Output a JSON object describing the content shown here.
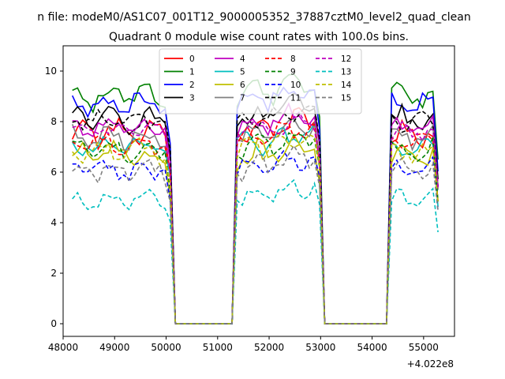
{
  "chart_data": {
    "type": "line",
    "suptitle": "n file: modeM0/AS1C07_001T12_9000005352_37887cztM0_level2_quad_clean",
    "title": "Quadrant 0 module wise count rates with 100.0s bins.",
    "xlabel": "",
    "ylabel": "",
    "x_offset_label": "+4.022e8",
    "xlim": [
      48000,
      55600
    ],
    "ylim": [
      -0.5,
      11
    ],
    "x_ticks": [
      48000,
      49000,
      50000,
      51000,
      52000,
      53000,
      54000,
      55000
    ],
    "x_tick_labels": [
      "48000",
      "49000",
      "50000",
      "51000",
      "52000",
      "53000",
      "54000",
      "55000"
    ],
    "y_ticks": [
      0,
      2,
      4,
      6,
      8,
      10
    ],
    "y_tick_labels": [
      "0",
      "2",
      "4",
      "6",
      "8",
      "10"
    ],
    "legend_location": "upper center",
    "legend_columns": 4,
    "x_start": 48180,
    "bin_width": 100,
    "gap1": {
      "first_zero": 50180,
      "last_zero": 51280
    },
    "gap2": {
      "first_zero": 53080,
      "last_zero": 54280
    },
    "series": [
      {
        "name": "0",
        "color": "#ff0000",
        "dash": "solid",
        "base": 7.5,
        "amp": 0.35,
        "phase": 0.0
      },
      {
        "name": "1",
        "color": "#008000",
        "dash": "solid",
        "base": 9.0,
        "amp": 0.35,
        "phase": 1.1
      },
      {
        "name": "2",
        "color": "#0000ff",
        "dash": "solid",
        "base": 8.7,
        "amp": 0.3,
        "phase": 2.3
      },
      {
        "name": "3",
        "color": "#000000",
        "dash": "solid",
        "base": 8.1,
        "amp": 0.35,
        "phase": 0.7
      },
      {
        "name": "4",
        "color": "#bf00bf",
        "dash": "solid",
        "base": 7.8,
        "amp": 0.3,
        "phase": 1.8
      },
      {
        "name": "5",
        "color": "#00bfbf",
        "dash": "solid",
        "base": 7.0,
        "amp": 0.3,
        "phase": 2.9
      },
      {
        "name": "6",
        "color": "#bfbf00",
        "dash": "solid",
        "base": 6.6,
        "amp": 0.35,
        "phase": 0.4
      },
      {
        "name": "7",
        "color": "#808080",
        "dash": "solid",
        "base": 7.4,
        "amp": 0.3,
        "phase": 1.5
      },
      {
        "name": "8",
        "color": "#ff0000",
        "dash": "dashed",
        "base": 7.2,
        "amp": 0.3,
        "phase": 2.6
      },
      {
        "name": "9",
        "color": "#008000",
        "dash": "dashed",
        "base": 6.9,
        "amp": 0.3,
        "phase": 0.9
      },
      {
        "name": "10",
        "color": "#0000ff",
        "dash": "dashed",
        "base": 6.1,
        "amp": 0.3,
        "phase": 2.0
      },
      {
        "name": "11",
        "color": "#000000",
        "dash": "dashed",
        "base": 8.0,
        "amp": 0.25,
        "phase": 3.1
      },
      {
        "name": "12",
        "color": "#bf00bf",
        "dash": "dashed",
        "base": 7.6,
        "amp": 0.3,
        "phase": 0.2
      },
      {
        "name": "13",
        "color": "#00bfbf",
        "dash": "dashed",
        "base": 4.9,
        "amp": 0.25,
        "phase": 1.3
      },
      {
        "name": "14",
        "color": "#bfbf00",
        "dash": "dashed",
        "base": 6.8,
        "amp": 0.3,
        "phase": 2.4
      },
      {
        "name": "15",
        "color": "#808080",
        "dash": "dashed",
        "base": 6.1,
        "amp": 0.3,
        "phase": 0.6
      }
    ]
  }
}
